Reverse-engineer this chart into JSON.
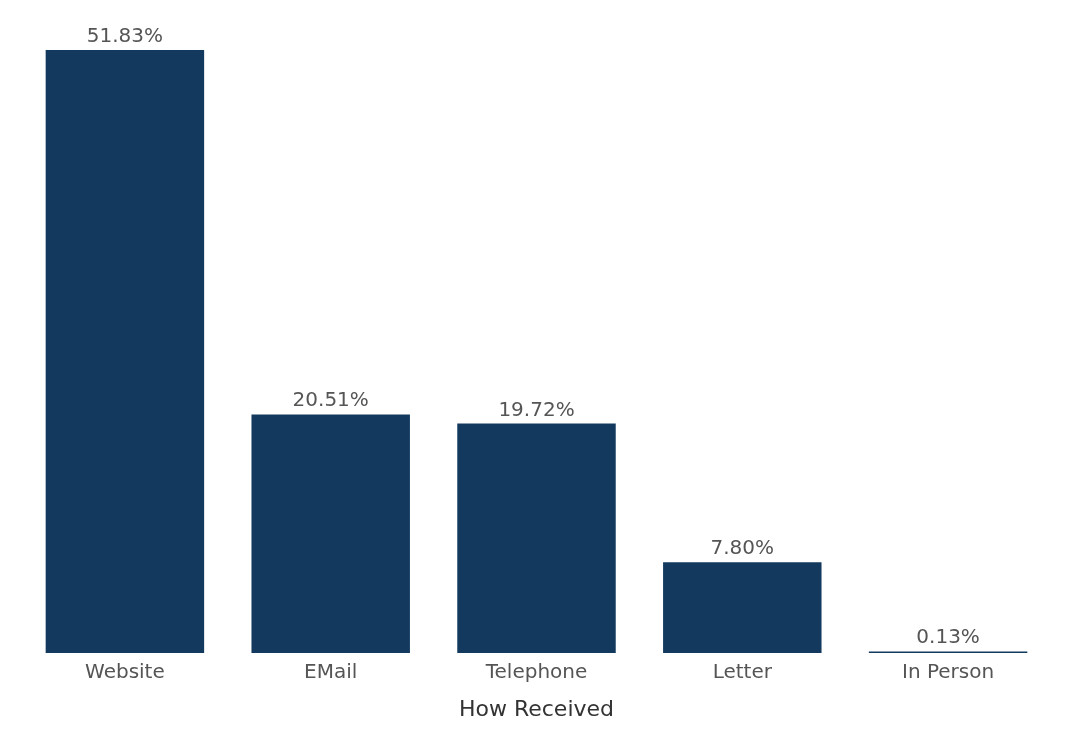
{
  "chart_data": {
    "type": "bar",
    "xlabel": "How Received",
    "categories": [
      "Website",
      "EMail",
      "Telephone",
      "Letter",
      "In Person"
    ],
    "values": [
      51.83,
      20.51,
      19.72,
      7.8,
      0.13
    ],
    "value_labels": [
      "51.83%",
      "20.51%",
      "19.72%",
      "7.80%",
      "0.13%"
    ],
    "color": "#133a5e"
  }
}
